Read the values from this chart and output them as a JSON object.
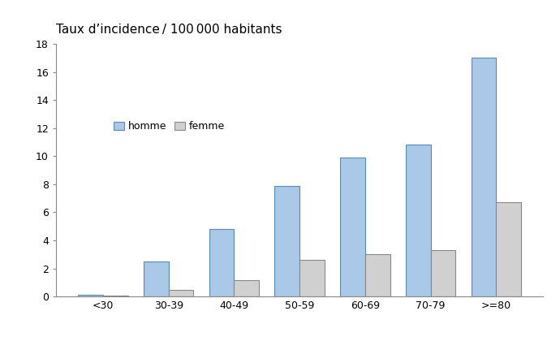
{
  "title": "Taux d’incidence / 100 000 habitants",
  "categories": [
    "<30",
    "30-39",
    "40-49",
    "50-59",
    "60-69",
    "70-79",
    ">=80"
  ],
  "homme": [
    0.15,
    2.5,
    4.8,
    7.9,
    9.9,
    10.8,
    17.0
  ],
  "femme": [
    0.05,
    0.45,
    1.15,
    2.6,
    3.0,
    3.3,
    6.7
  ],
  "homme_color": "#aac8e8",
  "femme_color": "#d0d0d0",
  "homme_edge": "#5a8ab0",
  "femme_edge": "#888888",
  "ylim": [
    0,
    18
  ],
  "yticks": [
    0,
    2,
    4,
    6,
    8,
    10,
    12,
    14,
    16,
    18
  ],
  "bar_width": 0.38,
  "legend_labels": [
    "homme",
    "femme"
  ],
  "title_fontsize": 11,
  "tick_fontsize": 9,
  "legend_fontsize": 9
}
